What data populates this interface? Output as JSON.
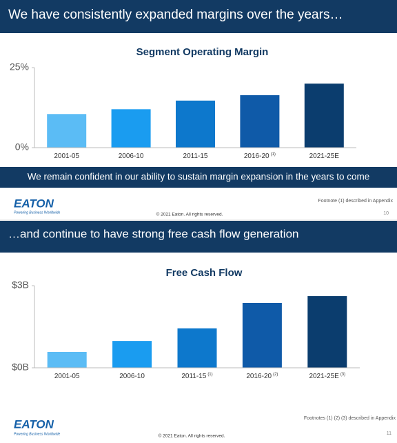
{
  "slides": [
    {
      "header": "We have consistently expanded margins over the years…",
      "banner": "We remain confident in our ability to sustain margin expansion in the years to come",
      "logo": "EATON",
      "tagline": "Powering Business Worldwide",
      "footnote": "Footnote (1) described in Appendix",
      "copyright": "© 2021 Eaton. All rights reserved.",
      "page": "10"
    },
    {
      "header": "…and continue to have strong free cash flow generation",
      "logo": "EATON",
      "tagline": "Powering Business Worldwide",
      "footnote": "Footnotes (1) (2) (3) described in Appendix",
      "copyright": "© 2021 Eaton. All rights reserved.",
      "page": "11"
    }
  ],
  "chart_data": [
    {
      "type": "bar",
      "title": "Segment Operating Margin",
      "categories": [
        "2001-05",
        "2006-10",
        "2011-15",
        "2016-20",
        "2021-25E"
      ],
      "category_notes": [
        null,
        null,
        null,
        "(1)",
        null
      ],
      "values": [
        10.5,
        12,
        14.7,
        16.4,
        20
      ],
      "colors": [
        "#5bbcf5",
        "#1a9cf0",
        "#0d78cc",
        "#0f5aa8",
        "#0b3d6e"
      ],
      "ylim": [
        0,
        25
      ],
      "yticks": [
        {
          "value": 0,
          "label": "0%"
        },
        {
          "value": 25,
          "label": "25%"
        }
      ]
    },
    {
      "type": "bar",
      "title": "Free Cash Flow",
      "categories": [
        "2001-05",
        "2006-10",
        "2011-15",
        "2016-20",
        "2021-25E"
      ],
      "category_notes": [
        null,
        null,
        "(1)",
        "(2)",
        "(3)"
      ],
      "values": [
        0.58,
        0.98,
        1.44,
        2.37,
        2.62
      ],
      "colors": [
        "#5bbcf5",
        "#1a9cf0",
        "#0d78cc",
        "#0f5aa8",
        "#0b3d6e"
      ],
      "ylim": [
        0,
        3
      ],
      "yticks": [
        {
          "value": 0,
          "label": "$0B"
        },
        {
          "value": 3,
          "label": "$3B"
        }
      ]
    }
  ]
}
